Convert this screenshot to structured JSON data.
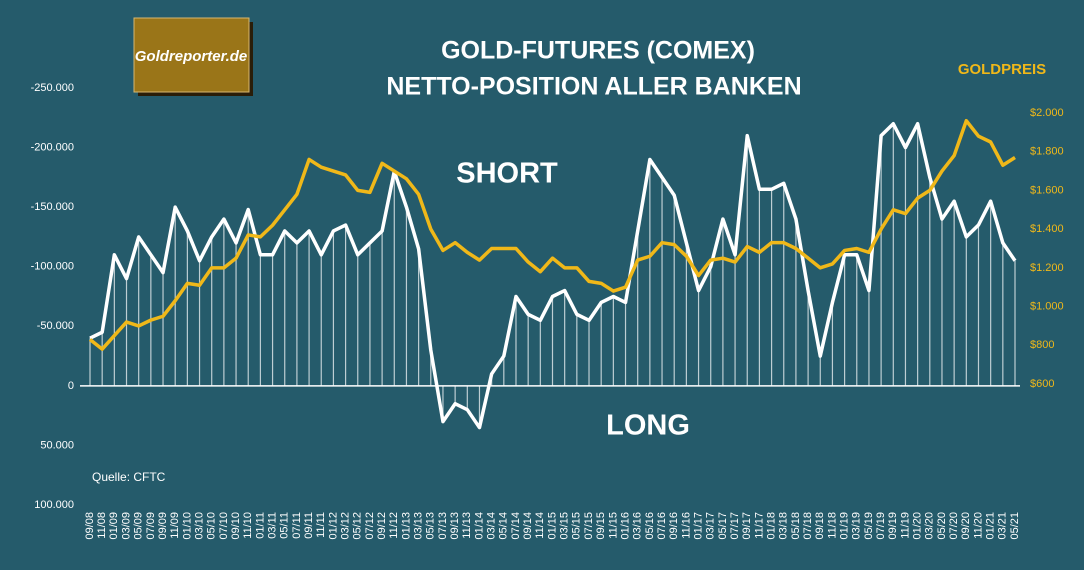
{
  "chart_data": {
    "type": "line",
    "logo": "Goldreporter.de",
    "title": "GOLD-FUTURES (COMEX)",
    "subtitle": "NETTO-POSITION ALLER BANKEN",
    "y2_label": "GOLDPREIS",
    "annotations": [
      "SHORT",
      "LONG"
    ],
    "source": "Quelle: CFTC",
    "categories": [
      "09/08",
      "11/08",
      "01/09",
      "03/09",
      "05/09",
      "07/09",
      "09/09",
      "11/09",
      "01/10",
      "03/10",
      "05/10",
      "07/10",
      "09/10",
      "11/10",
      "01/11",
      "03/11",
      "05/11",
      "07/11",
      "09/11",
      "11/11",
      "01/12",
      "03/12",
      "05/12",
      "07/12",
      "09/12",
      "11/12",
      "01/13",
      "03/13",
      "05/13",
      "07/13",
      "09/13",
      "11/13",
      "01/14",
      "03/14",
      "05/14",
      "07/14",
      "09/14",
      "11/14",
      "01/15",
      "03/15",
      "05/15",
      "07/15",
      "09/15",
      "11/15",
      "01/16",
      "03/16",
      "05/16",
      "07/16",
      "09/16",
      "11/16",
      "01/17",
      "03/17",
      "05/17",
      "07/17",
      "09/17",
      "11/17",
      "01/18",
      "03/18",
      "05/18",
      "07/18",
      "09/18",
      "11/18",
      "01/19",
      "03/19",
      "05/19",
      "07/19",
      "09/19",
      "11/19",
      "01/20",
      "03/20",
      "05/20",
      "07/20",
      "09/20",
      "11/20",
      "01/21",
      "03/21",
      "05/21"
    ],
    "series": [
      {
        "color": "#ffffff",
        "values": [
          -40000,
          -45000,
          -110000,
          -90000,
          -125000,
          -110000,
          -95000,
          -150000,
          -130000,
          -105000,
          -125000,
          -140000,
          -120000,
          -148000,
          -110000,
          -110000,
          -130000,
          -120000,
          -130000,
          -110000,
          -130000,
          -135000,
          -110000,
          -120000,
          -130000,
          -180000,
          -150000,
          -115000,
          -30000,
          30000,
          15000,
          20000,
          35000,
          -10000,
          -25000,
          -75000,
          -60000,
          -55000,
          -75000,
          -80000,
          -60000,
          -55000,
          -70000,
          -75000,
          -70000,
          -130000,
          -190000,
          -175000,
          -160000,
          -120000,
          -80000,
          -100000,
          -140000,
          -110000,
          -210000,
          -165000,
          -165000,
          -170000,
          -140000,
          -80000,
          -25000,
          -70000,
          -110000,
          -110000,
          -80000,
          -210000,
          -220000,
          -200000,
          -220000,
          -175000,
          -140000,
          -155000,
          -125000,
          -135000,
          -155000,
          -120000,
          -105000
        ]
      },
      {
        "color": "#f0b819",
        "axis": "y2",
        "values": [
          830,
          780,
          850,
          920,
          900,
          930,
          950,
          1030,
          1120,
          1110,
          1200,
          1200,
          1250,
          1370,
          1360,
          1420,
          1500,
          1580,
          1760,
          1720,
          1700,
          1680,
          1600,
          1590,
          1740,
          1700,
          1660,
          1580,
          1400,
          1290,
          1330,
          1280,
          1240,
          1300,
          1300,
          1300,
          1230,
          1180,
          1250,
          1200,
          1200,
          1130,
          1120,
          1080,
          1100,
          1240,
          1260,
          1330,
          1320,
          1260,
          1160,
          1240,
          1250,
          1230,
          1310,
          1280,
          1330,
          1330,
          1300,
          1250,
          1200,
          1220,
          1290,
          1300,
          1280,
          1400,
          1500,
          1480,
          1560,
          1600,
          1700,
          1780,
          1960,
          1880,
          1850,
          1730,
          1770
        ]
      }
    ],
    "ylim": [
      -250000,
      100000
    ],
    "yinvert": true,
    "yticks": [
      {
        "value": -250000,
        "label": "-250.000"
      },
      {
        "value": -200000,
        "label": "-200.000"
      },
      {
        "value": -150000,
        "label": "-150.000"
      },
      {
        "value": -100000,
        "label": "-100.000"
      },
      {
        "value": -50000,
        "label": "-50.000"
      },
      0,
      {
        "value": 50000,
        "label": "50.000"
      },
      {
        "value": 100000,
        "label": "100.000"
      }
    ],
    "y2lim": [
      -25,
      2129
    ],
    "y2ticks": [
      {
        "value": 600,
        "label": "$600"
      },
      {
        "value": 800,
        "label": "$800"
      },
      {
        "value": 1000,
        "label": "$1.000"
      },
      {
        "value": 1200,
        "label": "$1.200"
      },
      {
        "value": 1400,
        "label": "$1.400"
      },
      {
        "value": 1600,
        "label": "$1.600"
      },
      {
        "value": 1800,
        "label": "$1.800"
      },
      {
        "value": 2000,
        "label": "$2.000"
      }
    ],
    "y2color": "#f0b819"
  }
}
